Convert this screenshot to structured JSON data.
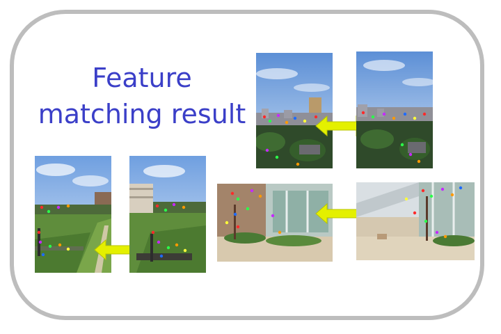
{
  "title": {
    "line1": "Feature",
    "line2": "matching result",
    "color": "#3b3fc8"
  },
  "pairs": [
    {
      "name": "city-skyline-pair",
      "left": "city-skyline-left-photo",
      "right": "city-skyline-right-photo"
    },
    {
      "name": "field-pair",
      "left": "field-left-photo",
      "right": "field-right-photo"
    },
    {
      "name": "building-plaza-pair",
      "left": "plaza-left-photo",
      "right": "plaza-right-photo"
    }
  ],
  "arrow_color": "#e4f000",
  "keypoint_colors": [
    "#ff2a2a",
    "#2aff4a",
    "#c52aff",
    "#ff9a00",
    "#1e6bff",
    "#ffff3a"
  ]
}
